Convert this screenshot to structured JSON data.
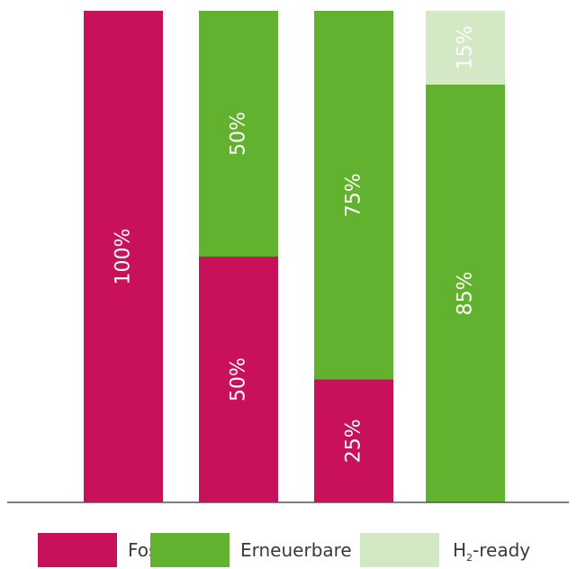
{
  "chart_data": {
    "type": "bar",
    "stacked": true,
    "categories": [
      "",
      "",
      "",
      ""
    ],
    "ylim": [
      0,
      100
    ],
    "grid": false,
    "legend_position": "bottom",
    "series": [
      {
        "name": "Fossil",
        "color": "#c8115a",
        "values": [
          100,
          50,
          25,
          0
        ],
        "labels": [
          "100%",
          "50%",
          "25%",
          ""
        ]
      },
      {
        "name": "Erneuerbare",
        "color": "#63b22f",
        "values": [
          0,
          50,
          75,
          85
        ],
        "labels": [
          "",
          "50%",
          "75%",
          "85%"
        ]
      },
      {
        "name": "H2-ready",
        "color": "#d3e8c4",
        "values": [
          0,
          0,
          0,
          15
        ],
        "labels": [
          "",
          "",
          "",
          "15%"
        ]
      }
    ]
  },
  "legend": {
    "fossil_label": "Fossil",
    "erneuerbare_label": "Erneuerbare",
    "h2_prefix": "H",
    "h2_sub": "2",
    "h2_suffix": "-ready"
  }
}
